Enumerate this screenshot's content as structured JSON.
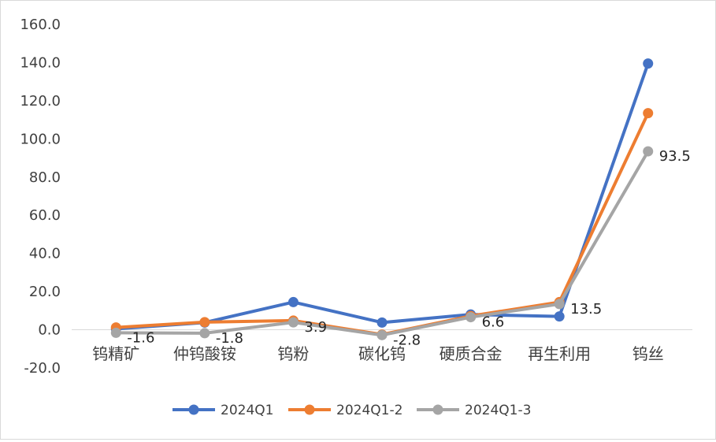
{
  "chart_data": {
    "type": "line",
    "categories": [
      "钨精矿",
      "仲钨酸铵",
      "钨粉",
      "碳化钨",
      "硬质合金",
      "再生利用",
      "钨丝"
    ],
    "series": [
      {
        "name": "2024Q1",
        "color": "#4472c4",
        "values": [
          0.5,
          3.8,
          14.5,
          3.8,
          8.0,
          7.0,
          139.5
        ]
      },
      {
        "name": "2024Q1-2",
        "color": "#ed7d31",
        "values": [
          1.2,
          4.0,
          4.8,
          -2.5,
          7.2,
          14.5,
          113.5
        ]
      },
      {
        "name": "2024Q1-3",
        "color": "#a5a5a5",
        "values": [
          -1.6,
          -1.8,
          3.9,
          -2.8,
          6.6,
          13.5,
          93.5
        ]
      }
    ],
    "data_labels": {
      "series": "2024Q1-3",
      "texts": [
        "-1.6",
        "-1.8",
        "3.9",
        "-2.8",
        "6.6",
        "13.5",
        "93.5"
      ]
    },
    "yticks": [
      "160.0",
      "140.0",
      "120.0",
      "100.0",
      "80.0",
      "60.0",
      "40.0",
      "20.0",
      "0.0",
      "-20.0"
    ],
    "ylim": [
      -20,
      160
    ],
    "grid": false,
    "legend_position": "bottom"
  }
}
